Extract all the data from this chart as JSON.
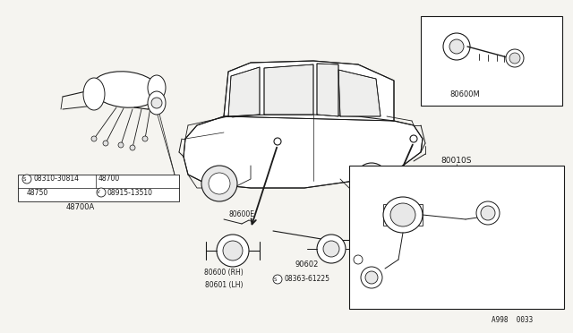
{
  "bg_color": "#f5f4f0",
  "fig_width": 6.4,
  "fig_height": 3.72,
  "dpi": 100,
  "line_color": "#1a1a1a",
  "labels": {
    "top_right_label": "80600M",
    "bottom_right_label": "80010S",
    "corner_code": "A998  0033",
    "l_s08310": "S 08310-30814",
    "l_48700": "48700",
    "l_48750": "48750",
    "l_v08915": "V 08915-13510",
    "l_48700A": "48700A",
    "l_80600E": "80600E",
    "l_80600RH": "80600 (RH)",
    "l_80601LH": "80601 (LH)",
    "l_90602": "90602",
    "l_s08363": "S 08363-61225"
  }
}
